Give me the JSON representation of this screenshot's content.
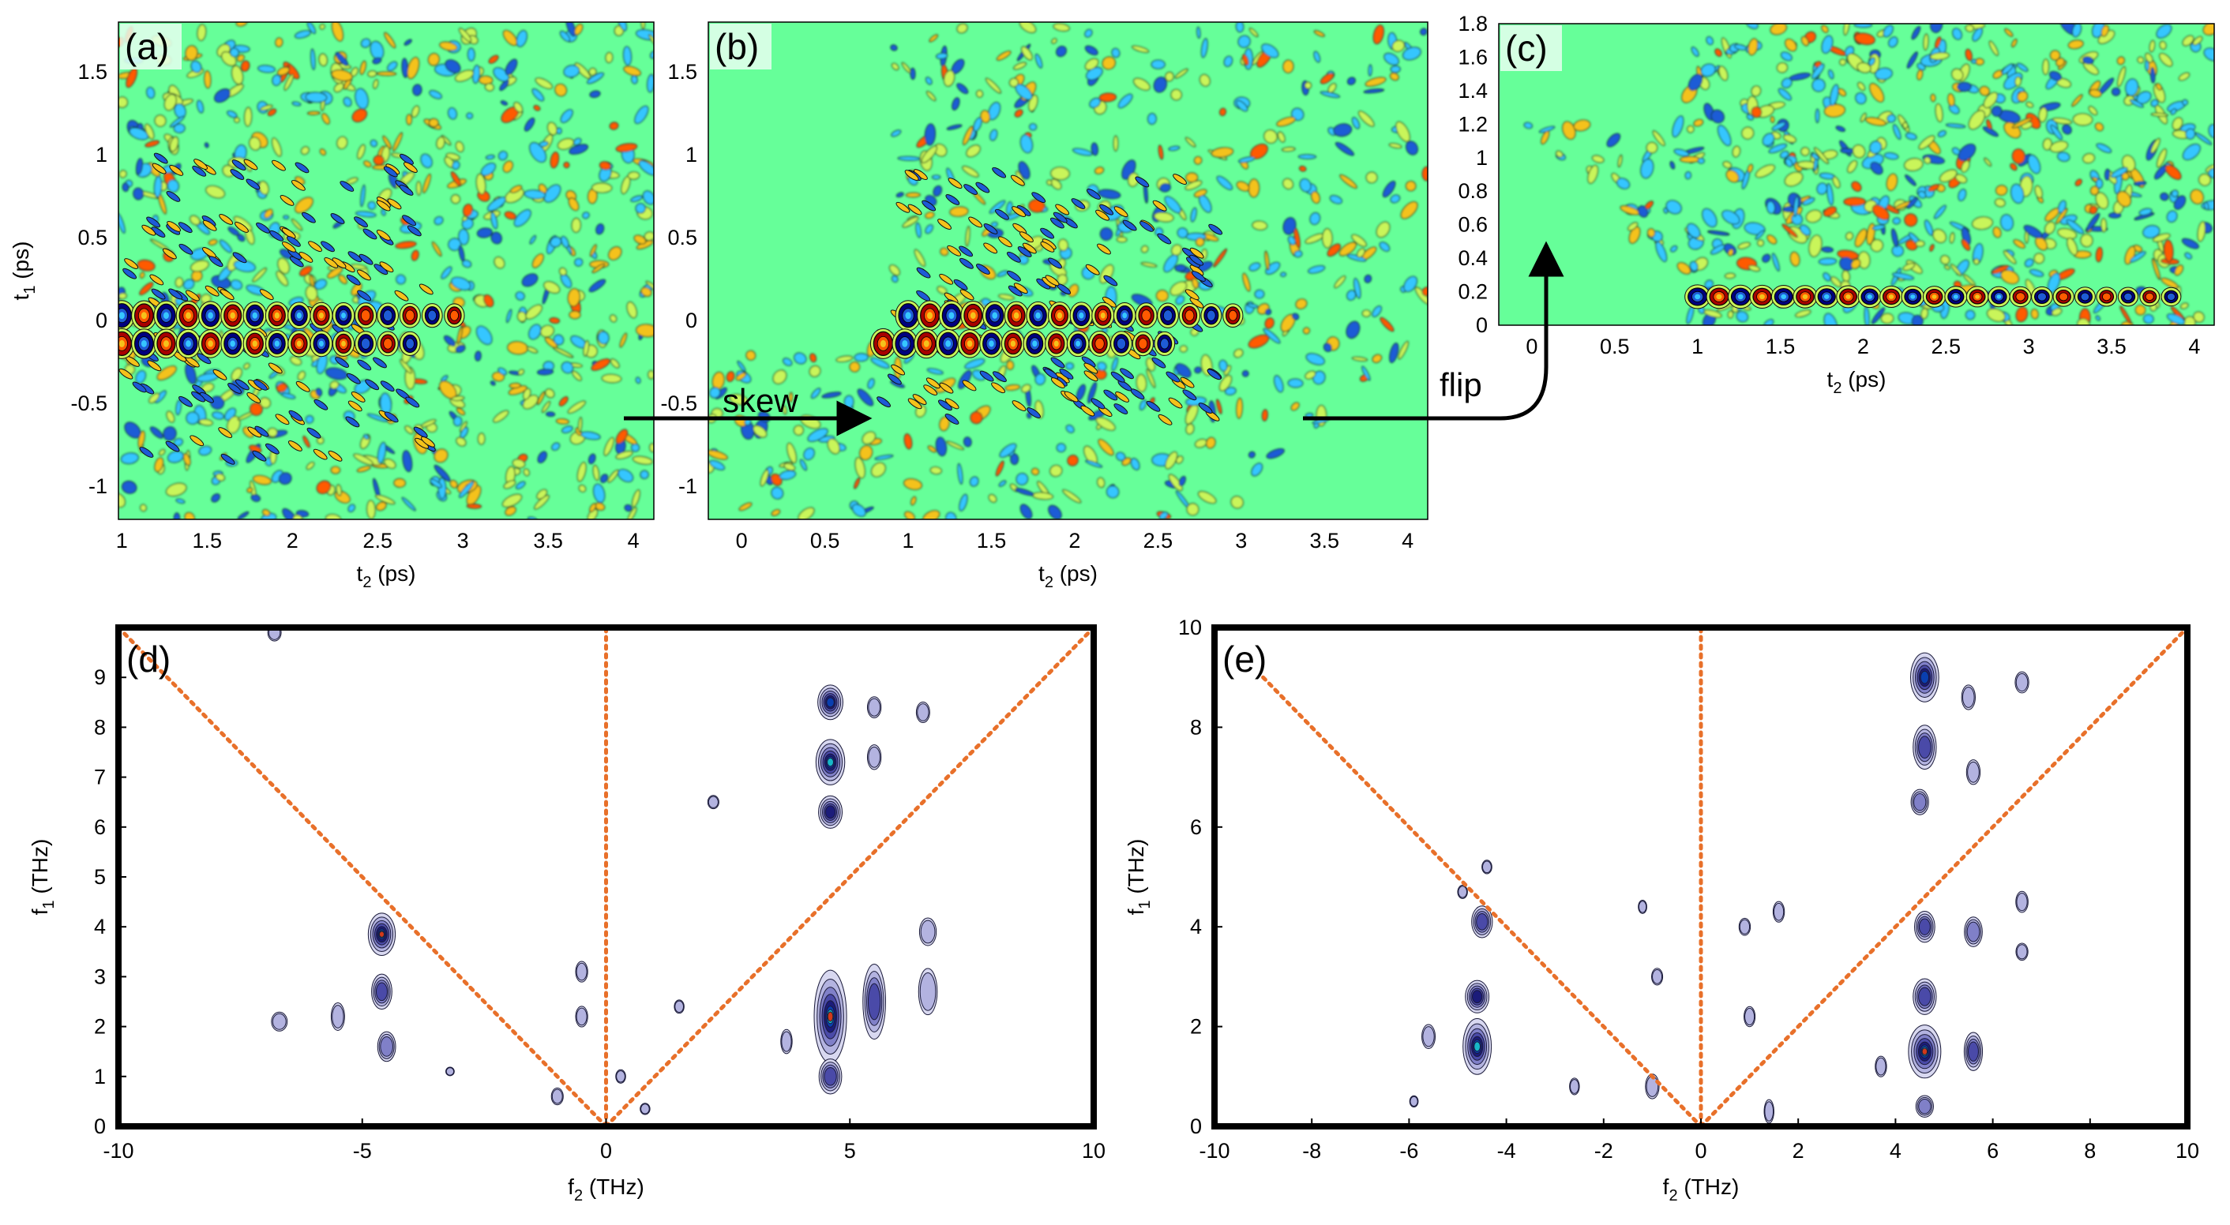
{
  "chart_data": [
    {
      "id": "a",
      "type": "heatmap",
      "panel_label": "(a)",
      "xlabel": "t2 (ps)",
      "ylabel": "t1 (ps)",
      "xlim": [
        0.98,
        4.12
      ],
      "ylim": [
        -1.2,
        1.8
      ],
      "xticks": [
        1,
        1.5,
        2,
        2.5,
        3,
        3.5,
        4
      ],
      "xtick_labels": [
        "1",
        "1.5",
        "2",
        "2.5",
        "3",
        "3.5",
        "4"
      ],
      "yticks": [
        -1,
        -0.5,
        0,
        0.5,
        1,
        1.5
      ],
      "ytick_labels": [
        "-1",
        "-0.5",
        "0",
        "0.5",
        "1",
        "1.5"
      ],
      "colormap": [
        "#00007f",
        "#1e5bd6",
        "#36c6ff",
        "#66ff99",
        "#c9f55a",
        "#f4c21b",
        "#ff5a00",
        "#a80000"
      ],
      "background_color": "#66ff99",
      "blob_rows": [
        {
          "t1": 0.03,
          "x_start": 1.0,
          "x_end": 3.0,
          "spacing": 0.13,
          "amplitude": 1.0
        },
        {
          "t1": -0.14,
          "x_start": 1.0,
          "x_end": 2.8,
          "spacing": 0.13,
          "amplitude": 0.9
        }
      ]
    },
    {
      "id": "b",
      "type": "heatmap",
      "panel_label": "(b)",
      "xlabel": "t2 (ps)",
      "ylabel": "",
      "xlim": [
        -0.2,
        4.12
      ],
      "ylim": [
        -1.2,
        1.8
      ],
      "xticks": [
        0,
        0.5,
        1,
        1.5,
        2,
        2.5,
        3,
        3.5,
        4
      ],
      "xtick_labels": [
        "0",
        "0.5",
        "1",
        "1.5",
        "2",
        "2.5",
        "3",
        "3.5",
        "4"
      ],
      "yticks": [
        -1,
        -0.5,
        0,
        0.5,
        1,
        1.5
      ],
      "ytick_labels": [
        "-1",
        "-0.5",
        "0",
        "0.5",
        "1",
        "1.5"
      ],
      "colormap": [
        "#00007f",
        "#1e5bd6",
        "#36c6ff",
        "#66ff99",
        "#c9f55a",
        "#f4c21b",
        "#ff5a00",
        "#a80000"
      ],
      "background_color": "#66ff99",
      "blob_rows": [
        {
          "t1": 0.03,
          "x_start": 1.0,
          "x_end": 3.0,
          "spacing": 0.13,
          "amplitude": 1.0
        },
        {
          "t1": -0.14,
          "x_start": 0.85,
          "x_end": 2.6,
          "spacing": 0.13,
          "amplitude": 0.9
        }
      ]
    },
    {
      "id": "c",
      "type": "heatmap",
      "panel_label": "(c)",
      "xlabel": "t2 (ps)",
      "ylabel": "",
      "xlim": [
        -0.2,
        4.12
      ],
      "ylim": [
        0,
        1.8
      ],
      "xticks": [
        0,
        0.5,
        1,
        1.5,
        2,
        2.5,
        3,
        3.5,
        4
      ],
      "xtick_labels": [
        "0",
        "0.5",
        "1",
        "1.5",
        "2",
        "2.5",
        "3",
        "3.5",
        "4"
      ],
      "yticks": [
        0,
        0.2,
        0.4,
        0.6,
        0.8,
        1,
        1.2,
        1.4,
        1.6,
        1.8
      ],
      "ytick_labels": [
        "0",
        "0.2",
        "0.4",
        "0.6",
        "0.8",
        "1",
        "1.2",
        "1.4",
        "1.6",
        "1.8"
      ],
      "colormap": [
        "#00007f",
        "#1e5bd6",
        "#36c6ff",
        "#66ff99",
        "#c9f55a",
        "#f4c21b",
        "#ff5a00",
        "#a80000"
      ],
      "background_color": "#66ff99",
      "blob_rows": [
        {
          "t1": 0.17,
          "x_start": 1.0,
          "x_end": 3.9,
          "spacing": 0.13,
          "amplitude": 1.0
        }
      ]
    },
    {
      "id": "d",
      "type": "heatmap",
      "panel_label": "(d)",
      "xlabel": "f2 (THz)",
      "ylabel": "f1 (THz)",
      "xlim": [
        -10,
        10
      ],
      "ylim": [
        0,
        10
      ],
      "xticks": [
        -10,
        -5,
        0,
        5,
        10
      ],
      "xtick_labels": [
        "-10",
        "-5",
        "0",
        "5",
        "10"
      ],
      "yticks": [
        0,
        1,
        2,
        3,
        4,
        5,
        6,
        7,
        8,
        9
      ],
      "ytick_labels": [
        "0",
        "1",
        "2",
        "3",
        "4",
        "5",
        "6",
        "7",
        "8",
        "9"
      ],
      "guide_lines_color": "#e8702a",
      "guide_lines": [
        [
          [
            -10,
            10
          ],
          [
            0,
            0
          ]
        ],
        [
          [
            0,
            0
          ],
          [
            10,
            10
          ]
        ],
        [
          [
            0,
            0
          ],
          [
            0,
            10
          ]
        ]
      ],
      "peaks": [
        {
          "f2": 4.6,
          "f1": 2.2,
          "sx": 0.3,
          "sy": 0.9,
          "amp": 1.0
        },
        {
          "f2": 4.6,
          "f1": 1.0,
          "sx": 0.25,
          "sy": 0.4,
          "amp": 0.5
        },
        {
          "f2": 4.6,
          "f1": 7.3,
          "sx": 0.28,
          "sy": 0.45,
          "amp": 0.85
        },
        {
          "f2": 4.6,
          "f1": 8.5,
          "sx": 0.25,
          "sy": 0.35,
          "amp": 0.75
        },
        {
          "f2": 4.6,
          "f1": 6.3,
          "sx": 0.25,
          "sy": 0.35,
          "amp": 0.6
        },
        {
          "f2": 5.5,
          "f1": 2.5,
          "sx": 0.25,
          "sy": 0.9,
          "amp": 0.5
        },
        {
          "f2": 6.6,
          "f1": 2.7,
          "sx": 0.22,
          "sy": 0.6,
          "amp": 0.3
        },
        {
          "f2": 6.6,
          "f1": 3.9,
          "sx": 0.2,
          "sy": 0.35,
          "amp": 0.25
        },
        {
          "f2": 5.5,
          "f1": 8.4,
          "sx": 0.15,
          "sy": 0.25,
          "amp": 0.3
        },
        {
          "f2": 5.5,
          "f1": 7.4,
          "sx": 0.15,
          "sy": 0.3,
          "amp": 0.3
        },
        {
          "f2": 6.5,
          "f1": 8.3,
          "sx": 0.15,
          "sy": 0.25,
          "amp": 0.25
        },
        {
          "f2": 3.7,
          "f1": 1.7,
          "sx": 0.12,
          "sy": 0.3,
          "amp": 0.25
        },
        {
          "f2": -4.6,
          "f1": 3.85,
          "sx": 0.25,
          "sy": 0.4,
          "amp": 0.95
        },
        {
          "f2": -4.6,
          "f1": 2.7,
          "sx": 0.22,
          "sy": 0.4,
          "amp": 0.5
        },
        {
          "f2": -4.5,
          "f1": 1.6,
          "sx": 0.2,
          "sy": 0.35,
          "amp": 0.4
        },
        {
          "f2": -5.5,
          "f1": 2.2,
          "sx": 0.15,
          "sy": 0.35,
          "amp": 0.25
        },
        {
          "f2": -6.7,
          "f1": 2.1,
          "sx": 0.18,
          "sy": 0.22,
          "amp": 0.3
        },
        {
          "f2": -6.8,
          "f1": 9.9,
          "sx": 0.15,
          "sy": 0.2,
          "amp": 0.25
        },
        {
          "f2": -0.5,
          "f1": 3.1,
          "sx": 0.13,
          "sy": 0.25,
          "amp": 0.25
        },
        {
          "f2": -0.5,
          "f1": 2.2,
          "sx": 0.13,
          "sy": 0.25,
          "amp": 0.25
        },
        {
          "f2": 0.3,
          "f1": 1.0,
          "sx": 0.1,
          "sy": 0.15,
          "amp": 0.22
        },
        {
          "f2": 1.5,
          "f1": 2.4,
          "sx": 0.1,
          "sy": 0.15,
          "amp": 0.2
        },
        {
          "f2": -1.0,
          "f1": 0.6,
          "sx": 0.13,
          "sy": 0.2,
          "amp": 0.22
        },
        {
          "f2": 2.2,
          "f1": 6.5,
          "sx": 0.12,
          "sy": 0.15,
          "amp": 0.2
        },
        {
          "f2": 0.8,
          "f1": 0.35,
          "sx": 0.1,
          "sy": 0.12,
          "amp": 0.2
        },
        {
          "f2": -3.2,
          "f1": 1.1,
          "sx": 0.08,
          "sy": 0.08,
          "amp": 0.2
        }
      ]
    },
    {
      "id": "e",
      "type": "heatmap",
      "panel_label": "(e)",
      "xlabel": "f2 (THz)",
      "ylabel": "f1 (THz)",
      "xlim": [
        -10,
        10
      ],
      "ylim": [
        0,
        10
      ],
      "xticks": [
        -10,
        -8,
        -6,
        -4,
        -2,
        0,
        2,
        4,
        6,
        8,
        10
      ],
      "xtick_labels": [
        "-10",
        "-8",
        "-6",
        "-4",
        "-2",
        "0",
        "2",
        "4",
        "6",
        "8",
        "10"
      ],
      "yticks": [
        0,
        2,
        4,
        6,
        8,
        10
      ],
      "ytick_labels": [
        "0",
        "2",
        "4",
        "6",
        "8",
        "10"
      ],
      "guide_lines_color": "#e8702a",
      "guide_lines": [
        [
          [
            -9,
            9
          ],
          [
            0,
            0
          ]
        ],
        [
          [
            0,
            0
          ],
          [
            10,
            10
          ]
        ],
        [
          [
            0,
            0
          ],
          [
            0,
            10
          ]
        ]
      ],
      "peaks": [
        {
          "f2": 4.6,
          "f1": 1.5,
          "sx": 0.3,
          "sy": 0.5,
          "amp": 1.0
        },
        {
          "f2": 4.6,
          "f1": 2.6,
          "sx": 0.25,
          "sy": 0.4,
          "amp": 0.55
        },
        {
          "f2": 4.6,
          "f1": 0.4,
          "sx": 0.2,
          "sy": 0.25,
          "amp": 0.35
        },
        {
          "f2": 4.6,
          "f1": 4.0,
          "sx": 0.22,
          "sy": 0.35,
          "amp": 0.5
        },
        {
          "f2": 4.6,
          "f1": 9.0,
          "sx": 0.28,
          "sy": 0.5,
          "amp": 0.8
        },
        {
          "f2": 4.6,
          "f1": 7.6,
          "sx": 0.25,
          "sy": 0.5,
          "amp": 0.55
        },
        {
          "f2": 4.5,
          "f1": 6.5,
          "sx": 0.2,
          "sy": 0.3,
          "amp": 0.35
        },
        {
          "f2": 5.6,
          "f1": 3.9,
          "sx": 0.2,
          "sy": 0.35,
          "amp": 0.4
        },
        {
          "f2": 5.6,
          "f1": 1.5,
          "sx": 0.2,
          "sy": 0.45,
          "amp": 0.45
        },
        {
          "f2": 5.5,
          "f1": 8.6,
          "sx": 0.15,
          "sy": 0.3,
          "amp": 0.3
        },
        {
          "f2": 5.6,
          "f1": 7.1,
          "sx": 0.15,
          "sy": 0.3,
          "amp": 0.3
        },
        {
          "f2": 6.6,
          "f1": 8.9,
          "sx": 0.15,
          "sy": 0.25,
          "amp": 0.3
        },
        {
          "f2": 6.6,
          "f1": 4.5,
          "sx": 0.13,
          "sy": 0.25,
          "amp": 0.3
        },
        {
          "f2": 6.6,
          "f1": 3.5,
          "sx": 0.13,
          "sy": 0.2,
          "amp": 0.25
        },
        {
          "f2": 3.7,
          "f1": 1.2,
          "sx": 0.12,
          "sy": 0.25,
          "amp": 0.25
        },
        {
          "f2": -4.6,
          "f1": 1.6,
          "sx": 0.27,
          "sy": 0.55,
          "amp": 0.9
        },
        {
          "f2": -4.6,
          "f1": 2.6,
          "sx": 0.25,
          "sy": 0.35,
          "amp": 0.6
        },
        {
          "f2": -4.5,
          "f1": 4.1,
          "sx": 0.22,
          "sy": 0.35,
          "amp": 0.55
        },
        {
          "f2": -4.4,
          "f1": 5.2,
          "sx": 0.1,
          "sy": 0.15,
          "amp": 0.25
        },
        {
          "f2": -5.6,
          "f1": 1.8,
          "sx": 0.15,
          "sy": 0.3,
          "amp": 0.25
        },
        {
          "f2": -1.0,
          "f1": 0.8,
          "sx": 0.15,
          "sy": 0.3,
          "amp": 0.3
        },
        {
          "f2": -0.9,
          "f1": 3.0,
          "sx": 0.12,
          "sy": 0.2,
          "amp": 0.2
        },
        {
          "f2": 0.9,
          "f1": 4.0,
          "sx": 0.12,
          "sy": 0.2,
          "amp": 0.25
        },
        {
          "f2": 1.6,
          "f1": 4.3,
          "sx": 0.12,
          "sy": 0.25,
          "amp": 0.25
        },
        {
          "f2": 1.0,
          "f1": 2.2,
          "sx": 0.12,
          "sy": 0.25,
          "amp": 0.2
        },
        {
          "f2": 1.4,
          "f1": 0.3,
          "sx": 0.1,
          "sy": 0.3,
          "amp": 0.2
        },
        {
          "f2": -2.6,
          "f1": 0.8,
          "sx": 0.1,
          "sy": 0.2,
          "amp": 0.2
        },
        {
          "f2": -1.2,
          "f1": 4.4,
          "sx": 0.08,
          "sy": 0.15,
          "amp": 0.2
        },
        {
          "f2": -4.9,
          "f1": 4.7,
          "sx": 0.1,
          "sy": 0.15,
          "amp": 0.2
        },
        {
          "f2": -5.9,
          "f1": 0.5,
          "sx": 0.08,
          "sy": 0.12,
          "amp": 0.2
        }
      ]
    }
  ],
  "annotations": {
    "skew_label": "skew",
    "flip_label": "flip"
  }
}
